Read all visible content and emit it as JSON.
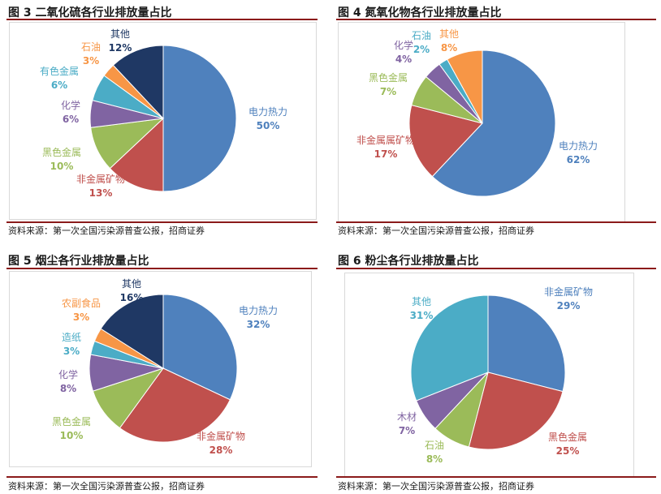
{
  "panels": [
    {
      "title": "图 3  二氧化硫各行业排放量占比",
      "source": "资料来源：第一次全国污染源普查公报，招商证券"
    },
    {
      "title": "图 4  氮氧化物各行业排放量占比",
      "source": "资料来源：第一次全国污染源普查公报，招商证券"
    },
    {
      "title": "图 5  烟尘各行业排放量占比",
      "source": "资料来源：第一次全国污染源普查公报，招商证券"
    },
    {
      "title": "图 6  粉尘各行业排放量占比",
      "source": "资料来源：第一次全国污染源普查公报，招商证券"
    }
  ],
  "colors": {
    "rule": "#8b1a1a",
    "blue": "#4f81bd",
    "red": "#c0504d",
    "green": "#9bbb59",
    "purple": "#8064a2",
    "teal": "#4bacc6",
    "orange": "#f79646",
    "navy": "#1f3864"
  },
  "chart_data": [
    {
      "type": "pie",
      "title": "图 3  二氧化硫各行业排放量占比",
      "slices": [
        {
          "label": "电力热力",
          "value": 50,
          "pct": "50%",
          "color": "#4f81bd"
        },
        {
          "label": "非金属矿物",
          "value": 13,
          "pct": "13%",
          "color": "#c0504d"
        },
        {
          "label": "黑色金属",
          "value": 10,
          "pct": "10%",
          "color": "#9bbb59"
        },
        {
          "label": "化学",
          "value": 6,
          "pct": "6%",
          "color": "#8064a2"
        },
        {
          "label": "有色金属",
          "value": 6,
          "pct": "6%",
          "color": "#4bacc6"
        },
        {
          "label": "石油",
          "value": 3,
          "pct": "3%",
          "color": "#f79646"
        },
        {
          "label": "其他",
          "value": 12,
          "pct": "12%",
          "color": "#1f3864"
        }
      ]
    },
    {
      "type": "pie",
      "title": "图 4  氮氧化物各行业排放量占比",
      "slices": [
        {
          "label": "电力热力",
          "value": 62,
          "pct": "62%",
          "color": "#4f81bd"
        },
        {
          "label": "非金属属矿物",
          "value": 17,
          "pct": "17%",
          "color": "#c0504d"
        },
        {
          "label": "黑色金属",
          "value": 7,
          "pct": "7%",
          "color": "#9bbb59"
        },
        {
          "label": "化学",
          "value": 4,
          "pct": "4%",
          "color": "#8064a2"
        },
        {
          "label": "石油",
          "value": 2,
          "pct": "2%",
          "color": "#4bacc6"
        },
        {
          "label": "其他",
          "value": 8,
          "pct": "8%",
          "color": "#f79646"
        }
      ]
    },
    {
      "type": "pie",
      "title": "图 5  烟尘各行业排放量占比",
      "slices": [
        {
          "label": "电力热力",
          "value": 32,
          "pct": "32%",
          "color": "#4f81bd"
        },
        {
          "label": "非金属矿物",
          "value": 28,
          "pct": "28%",
          "color": "#c0504d"
        },
        {
          "label": "黑色金属",
          "value": 10,
          "pct": "10%",
          "color": "#9bbb59"
        },
        {
          "label": "化学",
          "value": 8,
          "pct": "8%",
          "color": "#8064a2"
        },
        {
          "label": "造纸",
          "value": 3,
          "pct": "3%",
          "color": "#4bacc6"
        },
        {
          "label": "农副食品",
          "value": 3,
          "pct": "3%",
          "color": "#f79646"
        },
        {
          "label": "其他",
          "value": 16,
          "pct": "16%",
          "color": "#1f3864"
        }
      ]
    },
    {
      "type": "pie",
      "title": "图 6  粉尘各行业排放量占比",
      "slices": [
        {
          "label": "非金属矿物",
          "value": 29,
          "pct": "29%",
          "color": "#4f81bd"
        },
        {
          "label": "黑色金属",
          "value": 25,
          "pct": "25%",
          "color": "#c0504d"
        },
        {
          "label": "石油",
          "value": 8,
          "pct": "8%",
          "color": "#9bbb59"
        },
        {
          "label": "木材",
          "value": 7,
          "pct": "7%",
          "color": "#8064a2"
        },
        {
          "label": "其他",
          "value": 31,
          "pct": "31%",
          "color": "#4bacc6"
        }
      ]
    }
  ]
}
